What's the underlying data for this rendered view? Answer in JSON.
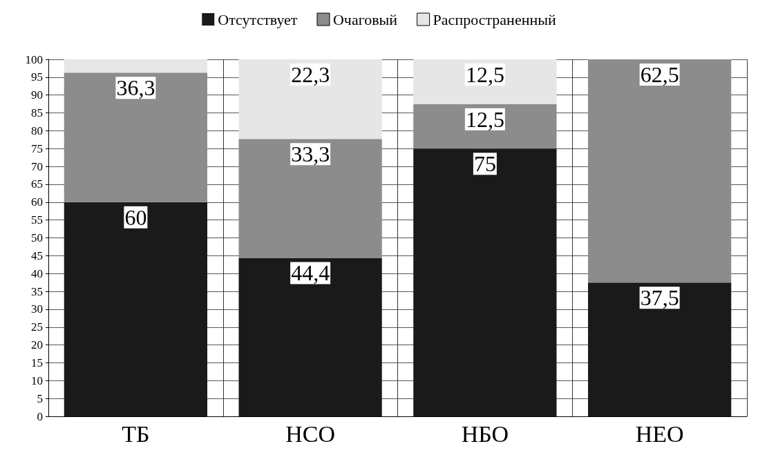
{
  "chart_data": {
    "type": "bar",
    "stacked": true,
    "categories": [
      "ТБ",
      "НСО",
      "НБО",
      "НЕО"
    ],
    "series": [
      {
        "name": "Отсутствует",
        "color": "#1a1a1a",
        "values": [
          60,
          44.4,
          75,
          37.5
        ],
        "value_labels": [
          "60",
          "44,4",
          "75",
          "37,5"
        ]
      },
      {
        "name": "Очаговый",
        "color": "#8c8c8c",
        "values": [
          36.3,
          33.3,
          12.5,
          62.5
        ],
        "value_labels": [
          "36,3",
          "33,3",
          "12,5",
          "62,5"
        ]
      },
      {
        "name": "Распространенный",
        "color": "#e6e6e6",
        "values": [
          3.7,
          22.3,
          12.5,
          0
        ],
        "value_labels": [
          null,
          "22,3",
          "12,5",
          null
        ]
      }
    ],
    "ylim": [
      0,
      100
    ],
    "yticks": [
      0,
      5,
      10,
      15,
      20,
      25,
      30,
      35,
      40,
      45,
      50,
      55,
      60,
      65,
      70,
      75,
      80,
      85,
      90,
      95,
      100
    ],
    "grid": true,
    "legend": "top"
  }
}
